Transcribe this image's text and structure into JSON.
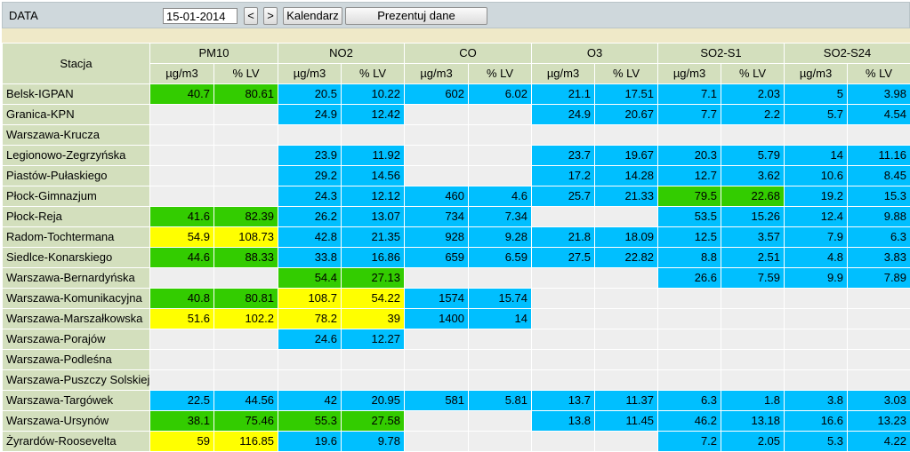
{
  "toolbar": {
    "date_label": "DATA",
    "date_value": "15-01-2014",
    "prev_label": "<",
    "next_label": ">",
    "calendar_label": "Kalendarz",
    "show_label": "Prezentuj dane"
  },
  "table": {
    "station_header": "Stacja",
    "unit_labels": [
      "µg/m3",
      "% LV"
    ],
    "pollutants": [
      "PM10",
      "NO2",
      "CO",
      "O3",
      "SO2-S1",
      "SO2-S24"
    ],
    "colors": {
      "b": "#00bfff",
      "g": "#33cc00",
      "y": "#ffff00",
      "e": "#eeeeee"
    },
    "rows": [
      {
        "station": "Belsk-IGPAN",
        "cells": [
          [
            "40.7",
            "g"
          ],
          [
            "80.61",
            "g"
          ],
          [
            "20.5",
            "b"
          ],
          [
            "10.22",
            "b"
          ],
          [
            "602",
            "b"
          ],
          [
            "6.02",
            "b"
          ],
          [
            "21.1",
            "b"
          ],
          [
            "17.51",
            "b"
          ],
          [
            "7.1",
            "b"
          ],
          [
            "2.03",
            "b"
          ],
          [
            "5",
            "b"
          ],
          [
            "3.98",
            "b"
          ]
        ]
      },
      {
        "station": "Granica-KPN",
        "cells": [
          [
            "",
            "e"
          ],
          [
            "",
            "e"
          ],
          [
            "24.9",
            "b"
          ],
          [
            "12.42",
            "b"
          ],
          [
            "",
            "e"
          ],
          [
            "",
            "e"
          ],
          [
            "24.9",
            "b"
          ],
          [
            "20.67",
            "b"
          ],
          [
            "7.7",
            "b"
          ],
          [
            "2.2",
            "b"
          ],
          [
            "5.7",
            "b"
          ],
          [
            "4.54",
            "b"
          ]
        ]
      },
      {
        "station": "Warszawa-Krucza",
        "cells": [
          [
            "",
            "e"
          ],
          [
            "",
            "e"
          ],
          [
            "",
            "e"
          ],
          [
            "",
            "e"
          ],
          [
            "",
            "e"
          ],
          [
            "",
            "e"
          ],
          [
            "",
            "e"
          ],
          [
            "",
            "e"
          ],
          [
            "",
            "e"
          ],
          [
            "",
            "e"
          ],
          [
            "",
            "e"
          ],
          [
            "",
            "e"
          ]
        ]
      },
      {
        "station": "Legionowo-Zegrzyńska",
        "cells": [
          [
            "",
            "e"
          ],
          [
            "",
            "e"
          ],
          [
            "23.9",
            "b"
          ],
          [
            "11.92",
            "b"
          ],
          [
            "",
            "e"
          ],
          [
            "",
            "e"
          ],
          [
            "23.7",
            "b"
          ],
          [
            "19.67",
            "b"
          ],
          [
            "20.3",
            "b"
          ],
          [
            "5.79",
            "b"
          ],
          [
            "14",
            "b"
          ],
          [
            "11.16",
            "b"
          ]
        ]
      },
      {
        "station": "Piastów-Pułaskiego",
        "cells": [
          [
            "",
            "e"
          ],
          [
            "",
            "e"
          ],
          [
            "29.2",
            "b"
          ],
          [
            "14.56",
            "b"
          ],
          [
            "",
            "e"
          ],
          [
            "",
            "e"
          ],
          [
            "17.2",
            "b"
          ],
          [
            "14.28",
            "b"
          ],
          [
            "12.7",
            "b"
          ],
          [
            "3.62",
            "b"
          ],
          [
            "10.6",
            "b"
          ],
          [
            "8.45",
            "b"
          ]
        ]
      },
      {
        "station": "Płock-Gimnazjum",
        "cells": [
          [
            "",
            "e"
          ],
          [
            "",
            "e"
          ],
          [
            "24.3",
            "b"
          ],
          [
            "12.12",
            "b"
          ],
          [
            "460",
            "b"
          ],
          [
            "4.6",
            "b"
          ],
          [
            "25.7",
            "b"
          ],
          [
            "21.33",
            "b"
          ],
          [
            "79.5",
            "g"
          ],
          [
            "22.68",
            "g"
          ],
          [
            "19.2",
            "b"
          ],
          [
            "15.3",
            "b"
          ]
        ]
      },
      {
        "station": "Płock-Reja",
        "cells": [
          [
            "41.6",
            "g"
          ],
          [
            "82.39",
            "g"
          ],
          [
            "26.2",
            "b"
          ],
          [
            "13.07",
            "b"
          ],
          [
            "734",
            "b"
          ],
          [
            "7.34",
            "b"
          ],
          [
            "",
            "e"
          ],
          [
            "",
            "e"
          ],
          [
            "53.5",
            "b"
          ],
          [
            "15.26",
            "b"
          ],
          [
            "12.4",
            "b"
          ],
          [
            "9.88",
            "b"
          ]
        ]
      },
      {
        "station": "Radom-Tochtermana",
        "cells": [
          [
            "54.9",
            "y"
          ],
          [
            "108.73",
            "y"
          ],
          [
            "42.8",
            "b"
          ],
          [
            "21.35",
            "b"
          ],
          [
            "928",
            "b"
          ],
          [
            "9.28",
            "b"
          ],
          [
            "21.8",
            "b"
          ],
          [
            "18.09",
            "b"
          ],
          [
            "12.5",
            "b"
          ],
          [
            "3.57",
            "b"
          ],
          [
            "7.9",
            "b"
          ],
          [
            "6.3",
            "b"
          ]
        ]
      },
      {
        "station": "Siedlce-Konarskiego",
        "cells": [
          [
            "44.6",
            "g"
          ],
          [
            "88.33",
            "g"
          ],
          [
            "33.8",
            "b"
          ],
          [
            "16.86",
            "b"
          ],
          [
            "659",
            "b"
          ],
          [
            "6.59",
            "b"
          ],
          [
            "27.5",
            "b"
          ],
          [
            "22.82",
            "b"
          ],
          [
            "8.8",
            "b"
          ],
          [
            "2.51",
            "b"
          ],
          [
            "4.8",
            "b"
          ],
          [
            "3.83",
            "b"
          ]
        ]
      },
      {
        "station": "Warszawa-Bernardyńska",
        "cells": [
          [
            "",
            "e"
          ],
          [
            "",
            "e"
          ],
          [
            "54.4",
            "g"
          ],
          [
            "27.13",
            "g"
          ],
          [
            "",
            "e"
          ],
          [
            "",
            "e"
          ],
          [
            "",
            "e"
          ],
          [
            "",
            "e"
          ],
          [
            "26.6",
            "b"
          ],
          [
            "7.59",
            "b"
          ],
          [
            "9.9",
            "b"
          ],
          [
            "7.89",
            "b"
          ]
        ]
      },
      {
        "station": "Warszawa-Komunikacyjna",
        "cells": [
          [
            "40.8",
            "g"
          ],
          [
            "80.81",
            "g"
          ],
          [
            "108.7",
            "y"
          ],
          [
            "54.22",
            "y"
          ],
          [
            "1574",
            "b"
          ],
          [
            "15.74",
            "b"
          ],
          [
            "",
            "e"
          ],
          [
            "",
            "e"
          ],
          [
            "",
            "e"
          ],
          [
            "",
            "e"
          ],
          [
            "",
            "e"
          ],
          [
            "",
            "e"
          ]
        ]
      },
      {
        "station": "Warszawa-Marszałkowska",
        "cells": [
          [
            "51.6",
            "y"
          ],
          [
            "102.2",
            "y"
          ],
          [
            "78.2",
            "y"
          ],
          [
            "39",
            "y"
          ],
          [
            "1400",
            "b"
          ],
          [
            "14",
            "b"
          ],
          [
            "",
            "e"
          ],
          [
            "",
            "e"
          ],
          [
            "",
            "e"
          ],
          [
            "",
            "e"
          ],
          [
            "",
            "e"
          ],
          [
            "",
            "e"
          ]
        ]
      },
      {
        "station": "Warszawa-Porajów",
        "cells": [
          [
            "",
            "e"
          ],
          [
            "",
            "e"
          ],
          [
            "24.6",
            "b"
          ],
          [
            "12.27",
            "b"
          ],
          [
            "",
            "e"
          ],
          [
            "",
            "e"
          ],
          [
            "",
            "e"
          ],
          [
            "",
            "e"
          ],
          [
            "",
            "e"
          ],
          [
            "",
            "e"
          ],
          [
            "",
            "e"
          ],
          [
            "",
            "e"
          ]
        ]
      },
      {
        "station": "Warszawa-Podleśna",
        "cells": [
          [
            "",
            "e"
          ],
          [
            "",
            "e"
          ],
          [
            "",
            "e"
          ],
          [
            "",
            "e"
          ],
          [
            "",
            "e"
          ],
          [
            "",
            "e"
          ],
          [
            "",
            "e"
          ],
          [
            "",
            "e"
          ],
          [
            "",
            "e"
          ],
          [
            "",
            "e"
          ],
          [
            "",
            "e"
          ],
          [
            "",
            "e"
          ]
        ]
      },
      {
        "station": "Warszawa-Puszczy Solskiej",
        "cells": [
          [
            "",
            "e"
          ],
          [
            "",
            "e"
          ],
          [
            "",
            "e"
          ],
          [
            "",
            "e"
          ],
          [
            "",
            "e"
          ],
          [
            "",
            "e"
          ],
          [
            "",
            "e"
          ],
          [
            "",
            "e"
          ],
          [
            "",
            "e"
          ],
          [
            "",
            "e"
          ],
          [
            "",
            "e"
          ],
          [
            "",
            "e"
          ]
        ]
      },
      {
        "station": "Warszawa-Targówek",
        "cells": [
          [
            "22.5",
            "b"
          ],
          [
            "44.56",
            "b"
          ],
          [
            "42",
            "b"
          ],
          [
            "20.95",
            "b"
          ],
          [
            "581",
            "b"
          ],
          [
            "5.81",
            "b"
          ],
          [
            "13.7",
            "b"
          ],
          [
            "11.37",
            "b"
          ],
          [
            "6.3",
            "b"
          ],
          [
            "1.8",
            "b"
          ],
          [
            "3.8",
            "b"
          ],
          [
            "3.03",
            "b"
          ]
        ]
      },
      {
        "station": "Warszawa-Ursynów",
        "cells": [
          [
            "38.1",
            "g"
          ],
          [
            "75.46",
            "g"
          ],
          [
            "55.3",
            "g"
          ],
          [
            "27.58",
            "g"
          ],
          [
            "",
            "e"
          ],
          [
            "",
            "e"
          ],
          [
            "13.8",
            "b"
          ],
          [
            "11.45",
            "b"
          ],
          [
            "46.2",
            "b"
          ],
          [
            "13.18",
            "b"
          ],
          [
            "16.6",
            "b"
          ],
          [
            "13.23",
            "b"
          ]
        ]
      },
      {
        "station": "Żyrardów-Roosevelta",
        "cells": [
          [
            "59",
            "y"
          ],
          [
            "116.85",
            "y"
          ],
          [
            "19.6",
            "b"
          ],
          [
            "9.78",
            "b"
          ],
          [
            "",
            "e"
          ],
          [
            "",
            "e"
          ],
          [
            "",
            "e"
          ],
          [
            "",
            "e"
          ],
          [
            "7.2",
            "b"
          ],
          [
            "2.05",
            "b"
          ],
          [
            "5.3",
            "b"
          ],
          [
            "4.22",
            "b"
          ]
        ]
      }
    ]
  }
}
